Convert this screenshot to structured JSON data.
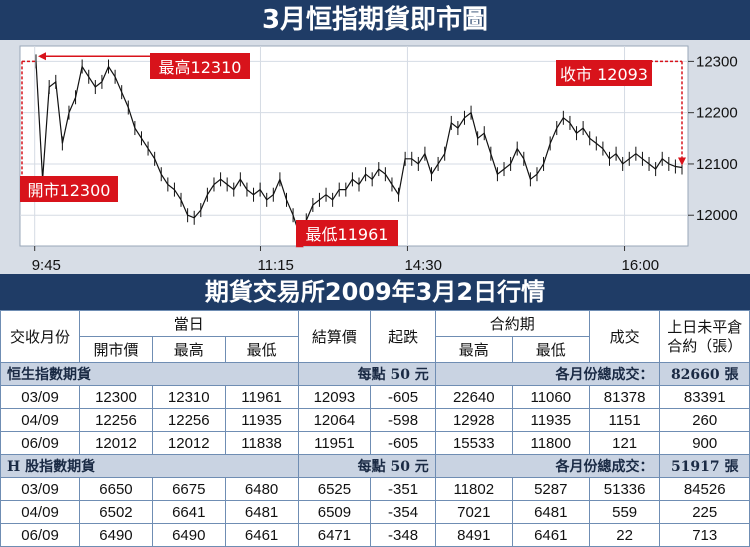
{
  "header": {
    "title": "3月恒指期貨即市圖"
  },
  "chart_data": {
    "type": "line",
    "title": "3月恒指期貨即市圖",
    "x_ticks": [
      "9:45",
      "11:15",
      "14:30",
      "16:00"
    ],
    "y_ticks": [
      12000,
      12100,
      12200,
      12300
    ],
    "ylim": [
      11940,
      12330
    ],
    "series": [
      {
        "values": [
          12300,
          12070,
          12250,
          12260,
          12140,
          12200,
          12230,
          12290,
          12270,
          12250,
          12260,
          12290,
          12270,
          12240,
          12210,
          12170,
          12150,
          12130,
          12110,
          12080,
          12060,
          12050,
          12030,
          12000,
          11995,
          12010,
          12040,
          12060,
          12070,
          12060,
          12050,
          12070,
          12050,
          12040,
          12050,
          12030,
          12040,
          12070,
          12030,
          12000,
          11961,
          11990,
          12020,
          12030,
          12040,
          12030,
          12050,
          12050,
          12070,
          12060,
          12080,
          12070,
          12090,
          12080,
          12060,
          12040,
          12110,
          12110,
          12100,
          12120,
          12080,
          12100,
          12120,
          12180,
          12170,
          12190,
          12200,
          12150,
          12160,
          12120,
          12080,
          12090,
          12100,
          12130,
          12110,
          12070,
          12080,
          12100,
          12140,
          12170,
          12190,
          12180,
          12160,
          12170,
          12150,
          12140,
          12130,
          12110,
          12120,
          12100,
          12110,
          12120,
          12110,
          12100,
          12090,
          12110,
          12100,
          12095,
          12093
        ]
      }
    ],
    "annotations": [
      {
        "label": "最高12310"
      },
      {
        "label": "收市 12093"
      },
      {
        "label": "開市12300"
      },
      {
        "label": "最低11961"
      }
    ]
  },
  "table": {
    "title": "期貨交易所2009年3月2日行情",
    "headers": {
      "month": "交收月份",
      "day": "當日",
      "open": "開市價",
      "high": "最高",
      "low": "最低",
      "settle": "結算價",
      "change": "起跌",
      "contract": "合約期",
      "c_high": "最高",
      "c_low": "最低",
      "volume": "成交",
      "oi_line1": "上日未平倉",
      "oi_line2": "合約（張）"
    },
    "sections": [
      {
        "name": "恒生指數期貨",
        "unit": "每點 50 元",
        "total_label": "各月份總成交：",
        "total": "82660 張",
        "rows": [
          [
            "03/09",
            "12300",
            "12310",
            "11961",
            "12093",
            "-605",
            "22640",
            "11060",
            "81378",
            "83391"
          ],
          [
            "04/09",
            "12256",
            "12256",
            "11935",
            "12064",
            "-598",
            "12928",
            "11935",
            "1151",
            "260"
          ],
          [
            "06/09",
            "12012",
            "12012",
            "11838",
            "11951",
            "-605",
            "15533",
            "11800",
            "121",
            "900"
          ]
        ]
      },
      {
        "name": "H 股指數期貨",
        "unit": "每點 50 元",
        "total_label": "各月份總成交：",
        "total": "51917 張",
        "rows": [
          [
            "03/09",
            "6650",
            "6675",
            "6480",
            "6525",
            "-351",
            "11802",
            "5287",
            "51336",
            "84526"
          ],
          [
            "04/09",
            "6502",
            "6641",
            "6481",
            "6509",
            "-354",
            "7021",
            "6481",
            "559",
            "225"
          ],
          [
            "06/09",
            "6490",
            "6490",
            "6461",
            "6471",
            "-348",
            "8491",
            "6461",
            "22",
            "713"
          ]
        ]
      }
    ]
  },
  "colors": {
    "band": "#1f3c66",
    "chart_bg": "#d7dde6",
    "plot_bg": "#ffffff",
    "callout": "#d8131b",
    "section_bg": "#c9d3e2",
    "grid_line": "#6f8db3"
  }
}
